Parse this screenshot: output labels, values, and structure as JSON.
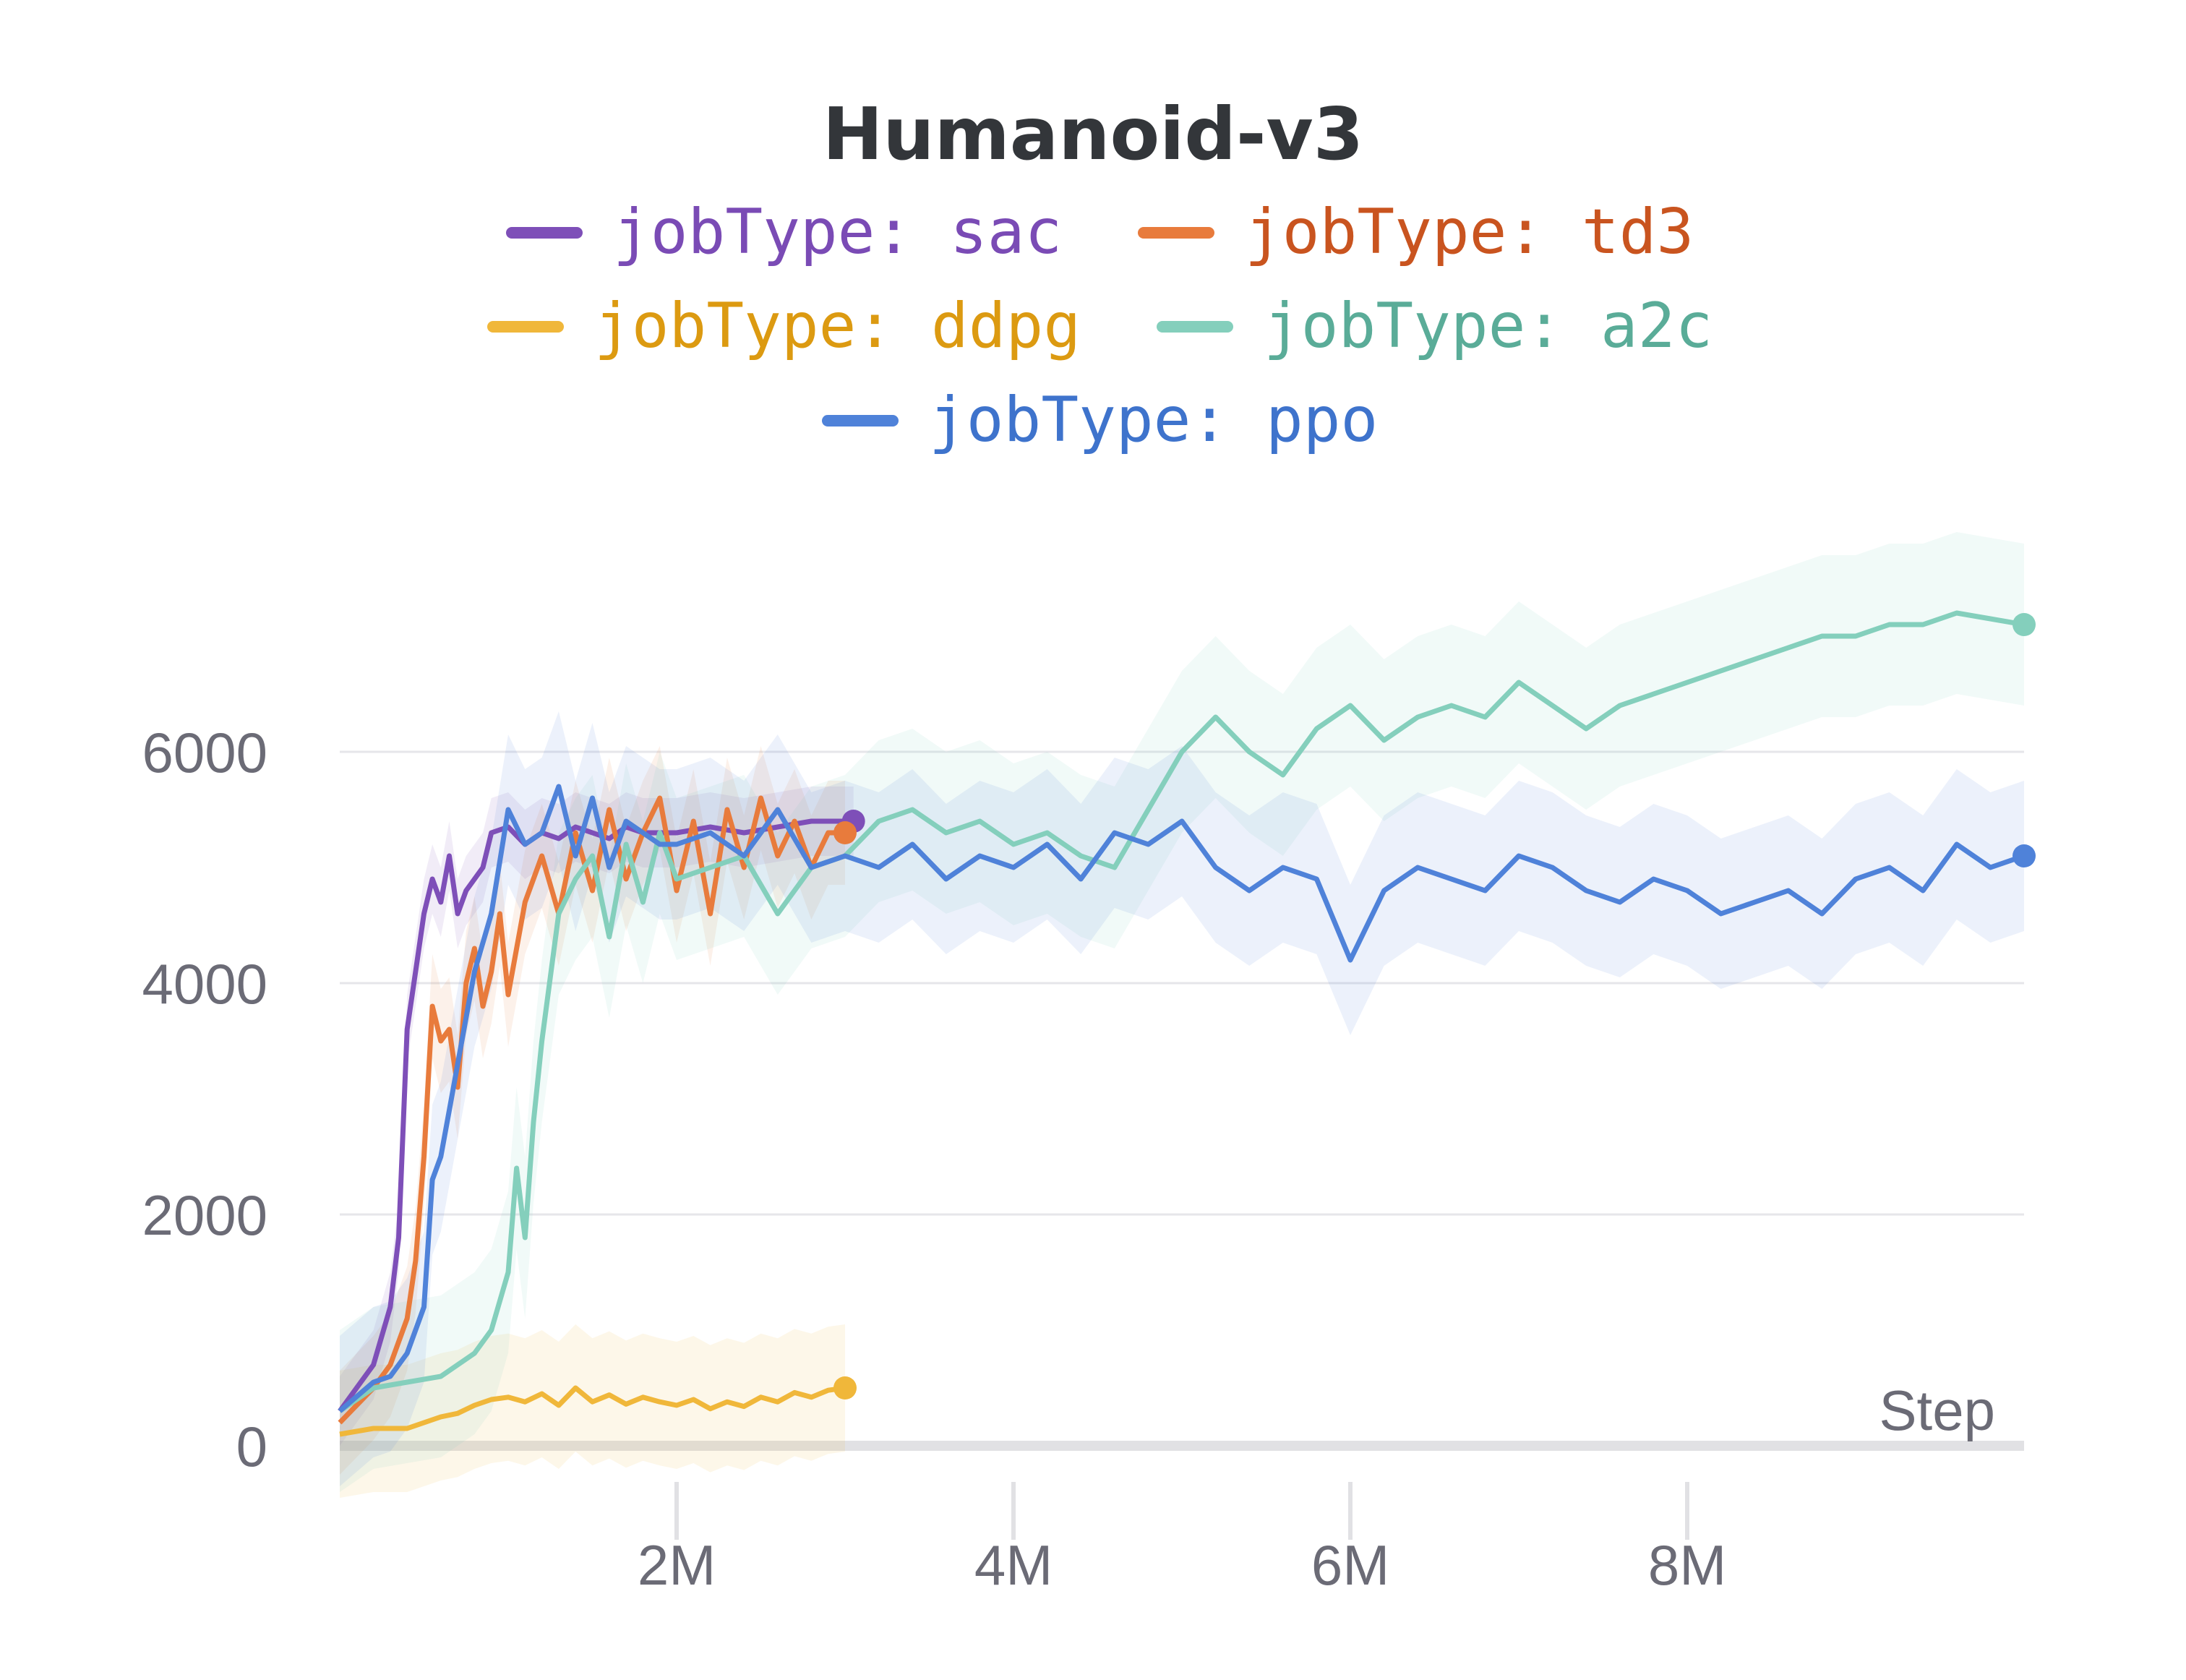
{
  "chart_data": {
    "type": "line",
    "title": "Humanoid-v3",
    "xlabel": "Step",
    "ylabel": "",
    "xlim": [
      0,
      10000000
    ],
    "ylim": [
      -500,
      8000
    ],
    "x_ticks": [
      {
        "value": 2000000,
        "label": "2M"
      },
      {
        "value": 4000000,
        "label": "4M"
      },
      {
        "value": 6000000,
        "label": "6M"
      },
      {
        "value": 8000000,
        "label": "8M"
      }
    ],
    "y_ticks": [
      {
        "value": 0,
        "label": "0"
      },
      {
        "value": 2000,
        "label": "2000"
      },
      {
        "value": 4000,
        "label": "4000"
      },
      {
        "value": 6000,
        "label": "6000"
      }
    ],
    "grid": "horizontal",
    "legend_position": "top-center",
    "series": [
      {
        "name": "jobType: sac",
        "color": "#7e4fb8",
        "text_color": "#7a4bb5",
        "band": 300,
        "x": [
          0,
          200000,
          300000,
          350000,
          400000,
          450000,
          500000,
          550000,
          600000,
          650000,
          700000,
          750000,
          800000,
          850000,
          900000,
          1000000,
          1100000,
          1200000,
          1300000,
          1400000,
          1500000,
          1600000,
          1700000,
          1800000,
          1900000,
          2000000,
          2200000,
          2400000,
          2600000,
          2800000,
          3000000,
          3050000
        ],
        "y": [
          300,
          700,
          1200,
          1800,
          3600,
          4100,
          4600,
          4900,
          4700,
          5100,
          4600,
          4800,
          4900,
          5000,
          5300,
          5350,
          5200,
          5300,
          5250,
          5350,
          5300,
          5250,
          5350,
          5300,
          5300,
          5300,
          5350,
          5300,
          5350,
          5400,
          5400,
          5400
        ]
      },
      {
        "name": "jobType: td3",
        "color": "#e87b3c",
        "text_color": "#c9541f",
        "band": 450,
        "x": [
          0,
          200000,
          300000,
          400000,
          450000,
          500000,
          550000,
          600000,
          650000,
          700000,
          750000,
          800000,
          850000,
          900000,
          950000,
          1000000,
          1100000,
          1200000,
          1300000,
          1400000,
          1500000,
          1600000,
          1700000,
          1800000,
          1900000,
          2000000,
          2100000,
          2200000,
          2300000,
          2400000,
          2500000,
          2600000,
          2700000,
          2800000,
          2900000,
          3000000
        ],
        "y": [
          200,
          500,
          700,
          1100,
          1600,
          2500,
          3800,
          3500,
          3600,
          3100,
          4000,
          4300,
          3800,
          4100,
          4600,
          3900,
          4700,
          5100,
          4600,
          5300,
          4800,
          5500,
          4900,
          5300,
          5600,
          4800,
          5400,
          4600,
          5500,
          5000,
          5600,
          5100,
          5400,
          5000,
          5300,
          5300
        ]
      },
      {
        "name": "jobType: ddpg",
        "color": "#f0b73a",
        "text_color": "#dc9a11",
        "band": 550,
        "x": [
          0,
          200000,
          400000,
          500000,
          600000,
          700000,
          800000,
          900000,
          1000000,
          1100000,
          1200000,
          1300000,
          1400000,
          1500000,
          1600000,
          1700000,
          1800000,
          1900000,
          2000000,
          2100000,
          2200000,
          2300000,
          2400000,
          2500000,
          2600000,
          2700000,
          2800000,
          2900000,
          3000000
        ],
        "y": [
          100,
          150,
          150,
          200,
          250,
          280,
          350,
          400,
          420,
          380,
          450,
          350,
          500,
          380,
          440,
          360,
          420,
          380,
          350,
          400,
          320,
          380,
          340,
          420,
          380,
          460,
          420,
          480,
          500
        ]
      },
      {
        "name": "jobType: a2c",
        "color": "#84cfbc",
        "text_color": "#5aac98",
        "band": 700,
        "x": [
          0,
          200000,
          400000,
          600000,
          700000,
          800000,
          900000,
          1000000,
          1050000,
          1100000,
          1150000,
          1200000,
          1300000,
          1400000,
          1500000,
          1600000,
          1700000,
          1800000,
          1900000,
          2000000,
          2200000,
          2400000,
          2600000,
          2800000,
          3000000,
          3200000,
          3400000,
          3600000,
          3800000,
          4000000,
          4200000,
          4400000,
          4600000,
          4800000,
          5000000,
          5200000,
          5400000,
          5600000,
          5800000,
          6000000,
          6200000,
          6400000,
          6600000,
          6800000,
          7000000,
          7200000,
          7400000,
          7600000,
          7800000,
          8000000,
          8200000,
          8400000,
          8600000,
          8800000,
          9000000,
          9200000,
          9400000,
          9600000,
          9800000,
          10000000
        ],
        "y": [
          300,
          500,
          550,
          600,
          700,
          800,
          1000,
          1500,
          2400,
          1800,
          2800,
          3500,
          4600,
          4900,
          5100,
          4400,
          5200,
          4700,
          5300,
          4900,
          5000,
          5100,
          4600,
          5000,
          5100,
          5400,
          5500,
          5300,
          5400,
          5200,
          5300,
          5100,
          5000,
          5500,
          6000,
          6300,
          6000,
          5800,
          6200,
          6400,
          6100,
          6300,
          6400,
          6300,
          6600,
          6400,
          6200,
          6400,
          6500,
          6600,
          6700,
          6800,
          6900,
          7000,
          7000,
          7100,
          7100,
          7200,
          7150,
          7100
        ]
      },
      {
        "name": "jobType: ppo",
        "color": "#4f82d9",
        "text_color": "#3e73cc",
        "band": 650,
        "x": [
          0,
          200000,
          300000,
          400000,
          500000,
          550000,
          600000,
          650000,
          700000,
          800000,
          900000,
          1000000,
          1100000,
          1200000,
          1300000,
          1400000,
          1500000,
          1600000,
          1700000,
          1800000,
          1900000,
          2000000,
          2200000,
          2400000,
          2600000,
          2800000,
          3000000,
          3200000,
          3400000,
          3600000,
          3800000,
          4000000,
          4200000,
          4400000,
          4600000,
          4800000,
          5000000,
          5200000,
          5400000,
          5600000,
          5800000,
          6000000,
          6200000,
          6400000,
          6600000,
          6800000,
          7000000,
          7200000,
          7400000,
          7600000,
          7800000,
          8000000,
          8200000,
          8400000,
          8600000,
          8800000,
          9000000,
          9200000,
          9400000,
          9600000,
          9800000,
          10000000
        ],
        "y": [
          300,
          550,
          600,
          800,
          1200,
          2300,
          2500,
          2900,
          3300,
          4100,
          4600,
          5500,
          5200,
          5300,
          5700,
          5100,
          5600,
          5000,
          5400,
          5300,
          5200,
          5200,
          5300,
          5100,
          5500,
          5000,
          5100,
          5000,
          5200,
          4900,
          5100,
          5000,
          5200,
          4900,
          5300,
          5200,
          5400,
          5000,
          4800,
          5000,
          4900,
          4200,
          4800,
          5000,
          4900,
          4800,
          5100,
          5000,
          4800,
          4700,
          4900,
          4800,
          4600,
          4700,
          4800,
          4600,
          4900,
          5000,
          4800,
          5200,
          5000,
          5100
        ]
      }
    ]
  }
}
